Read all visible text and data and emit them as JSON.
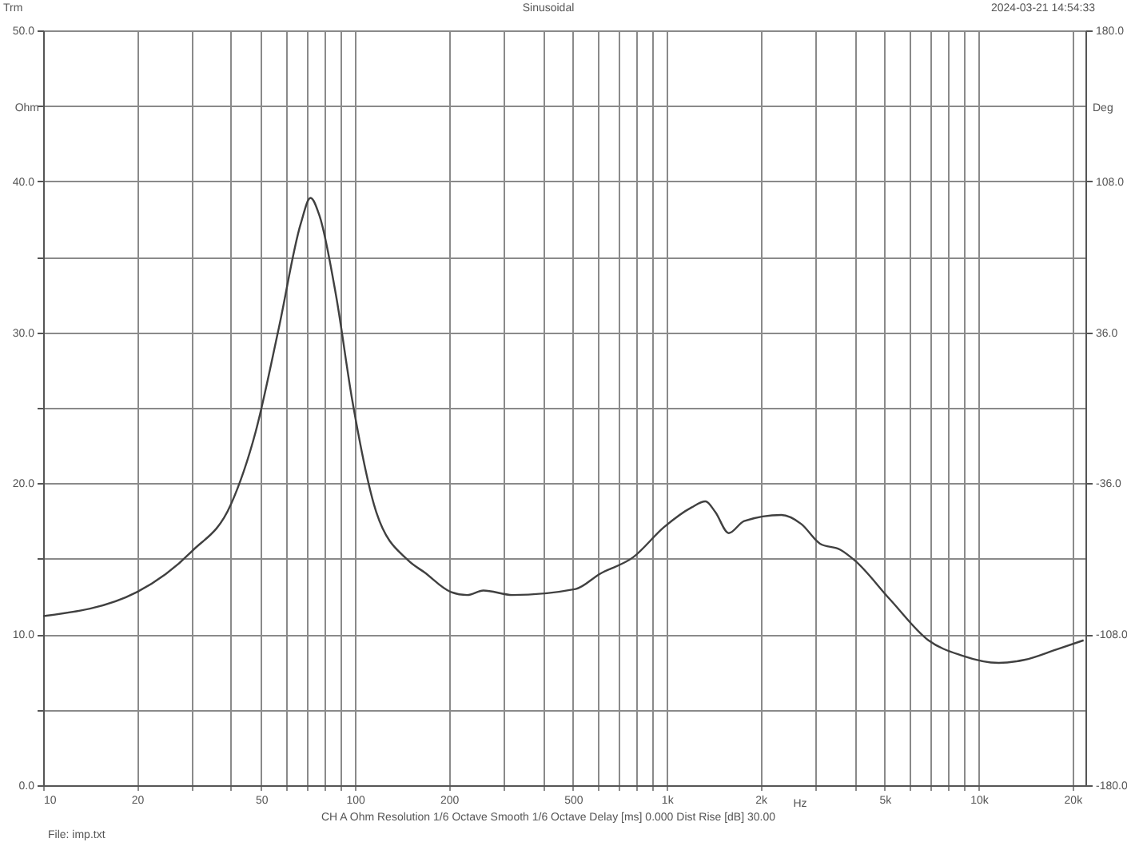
{
  "chart_data": {
    "type": "line",
    "title": "Sinusoidal",
    "xlabel": "Hz",
    "ylabel": "Ohm",
    "y2label": "Deg",
    "annotations": [
      "Trm",
      "2024-03-21 14:54:33",
      "CH A   Ohm   Resolution 1/6 Octave   Smooth 1/6 Octave   Delay [ms] 0.000   Dist Rise [dB] 30.00",
      "File: imp.txt"
    ],
    "log": "x",
    "grid": true,
    "marker": "none",
    "line_style": "solid",
    "xlim": [
      10,
      22000
    ],
    "ylim": [
      0,
      50
    ],
    "y2lim": [
      -180,
      180
    ],
    "xticks": [
      {
        "value": 10,
        "label": "10"
      },
      {
        "value": 20,
        "label": "20"
      },
      {
        "value": 30,
        "label": null
      },
      {
        "value": 40,
        "label": null
      },
      {
        "value": 50,
        "label": "50"
      },
      {
        "value": 60,
        "label": null
      },
      {
        "value": 70,
        "label": null
      },
      {
        "value": 80,
        "label": null
      },
      {
        "value": 90,
        "label": null
      },
      {
        "value": 100,
        "label": "100"
      },
      {
        "value": 200,
        "label": "200"
      },
      {
        "value": 300,
        "label": null
      },
      {
        "value": 400,
        "label": null
      },
      {
        "value": 500,
        "label": "500"
      },
      {
        "value": 600,
        "label": null
      },
      {
        "value": 700,
        "label": null
      },
      {
        "value": 800,
        "label": null
      },
      {
        "value": 900,
        "label": null
      },
      {
        "value": 1000,
        "label": "1k"
      },
      {
        "value": 2000,
        "label": "2k"
      },
      {
        "value": 3000,
        "label": null
      },
      {
        "value": 4000,
        "label": null
      },
      {
        "value": 5000,
        "label": "5k"
      },
      {
        "value": 6000,
        "label": null
      },
      {
        "value": 7000,
        "label": null
      },
      {
        "value": 8000,
        "label": null
      },
      {
        "value": 9000,
        "label": null
      },
      {
        "value": 10000,
        "label": "10k"
      },
      {
        "value": 20000,
        "label": "20k"
      }
    ],
    "yticks": [
      {
        "value": 0,
        "label": "0.0"
      },
      {
        "value": 5,
        "label": null
      },
      {
        "value": 10,
        "label": "10.0"
      },
      {
        "value": 15,
        "label": null
      },
      {
        "value": 20,
        "label": "20.0"
      },
      {
        "value": 25,
        "label": null
      },
      {
        "value": 30,
        "label": "30.0"
      },
      {
        "value": 35,
        "label": null
      },
      {
        "value": 40,
        "label": "40.0"
      },
      {
        "value": 45,
        "label": null
      },
      {
        "value": 50,
        "label": "50.0"
      }
    ],
    "y2ticks": [
      {
        "value": -180,
        "label": "-180.0"
      },
      {
        "value": -108,
        "label": "-108.0"
      },
      {
        "value": -36,
        "label": "-36.0"
      },
      {
        "value": 36,
        "label": "36.0"
      },
      {
        "value": 108,
        "label": "108.0"
      },
      {
        "value": 180,
        "label": "180.0"
      }
    ],
    "x": [
      10,
      20,
      30,
      40,
      48,
      57,
      67,
      72,
      77,
      87,
      98,
      117,
      148,
      167,
      203,
      229,
      258,
      320,
      510,
      610,
      780,
      980,
      1200,
      1330,
      1430,
      1580,
      1770,
      2330,
      2700,
      3100,
      3600,
      4000,
      5200,
      6900,
      8800,
      11600,
      14000,
      17800,
      21700
    ],
    "series": [
      {
        "color": "#404040",
        "values": [
          11.2,
          12.8,
          15.5,
          18.6,
          23.4,
          30.3,
          37.2,
          38.9,
          37.7,
          32.4,
          25.5,
          18.1,
          14.9,
          14.1,
          12.8,
          12.6,
          12.9,
          12.6,
          13.0,
          14.0,
          15.1,
          17.1,
          18.4,
          18.8,
          18.1,
          16.7,
          17.5,
          17.9,
          17.3,
          16.0,
          15.6,
          14.9,
          12.3,
          9.6,
          8.6,
          8.1,
          8.3,
          9.0,
          9.6
        ]
      }
    ]
  }
}
